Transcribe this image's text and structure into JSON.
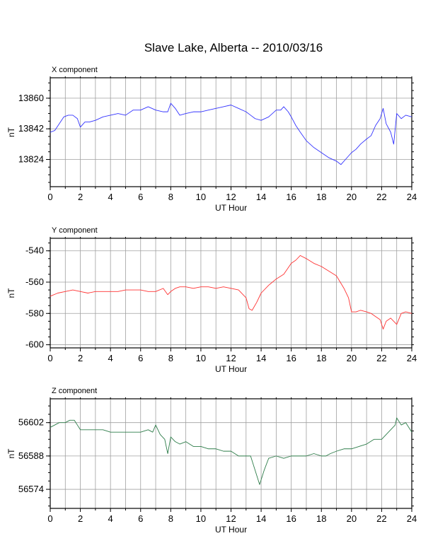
{
  "title": "Slave Lake, Alberta -- 2010/03/16",
  "chart_data": [
    {
      "type": "line",
      "title": "X component",
      "xlabel": "UT Hour",
      "ylabel": "nT",
      "xlim": [
        0,
        24
      ],
      "ylim": [
        13808,
        13872
      ],
      "x_ticks": [
        0,
        2,
        4,
        6,
        8,
        10,
        12,
        14,
        16,
        18,
        20,
        22,
        24
      ],
      "y_ticks": [
        13824,
        13842,
        13860
      ],
      "grid": true,
      "color": "#3333ff",
      "series": [
        {
          "x": [
            0,
            0.3,
            0.6,
            0.9,
            1.2,
            1.5,
            1.8,
            2.0,
            2.3,
            2.6,
            3.0,
            3.5,
            4.0,
            4.5,
            5.0,
            5.5,
            6.0,
            6.5,
            7.0,
            7.5,
            7.8,
            8.0,
            8.3,
            8.6,
            9.0,
            9.5,
            10.0,
            10.5,
            11.0,
            11.5,
            12.0,
            12.5,
            13.0,
            13.3,
            13.6,
            14.0,
            14.5,
            15.0,
            15.3,
            15.5,
            15.8,
            16.0,
            16.3,
            16.6,
            17.0,
            17.5,
            18.0,
            18.5,
            19.0,
            19.3,
            19.6,
            20.0,
            20.3,
            20.6,
            21.0,
            21.3,
            21.6,
            21.9,
            22.1,
            22.3,
            22.6,
            22.8,
            23.0,
            23.3,
            23.6,
            24.0
          ],
          "y": [
            13840,
            13841,
            13845,
            13849,
            13850,
            13850,
            13848,
            13843,
            13846,
            13846,
            13847,
            13849,
            13850,
            13851,
            13850,
            13853,
            13853,
            13855,
            13853,
            13852,
            13852,
            13857,
            13854,
            13850,
            13851,
            13852,
            13852,
            13853,
            13854,
            13855,
            13856,
            13854,
            13852,
            13850,
            13848,
            13847,
            13849,
            13853,
            13853,
            13855,
            13852,
            13849,
            13844,
            13840,
            13835,
            13831,
            13828,
            13825,
            13823,
            13821,
            13824,
            13828,
            13830,
            13833,
            13836,
            13838,
            13844,
            13848,
            13854,
            13845,
            13840,
            13833,
            13851,
            13848,
            13850,
            13849
          ]
        }
      ]
    },
    {
      "type": "line",
      "title": "Y component",
      "xlabel": "UT Hour",
      "ylabel": "nT",
      "xlim": [
        0,
        24
      ],
      "ylim": [
        -602,
        -532
      ],
      "x_ticks": [
        0,
        2,
        4,
        6,
        8,
        10,
        12,
        14,
        16,
        18,
        20,
        22,
        24
      ],
      "y_ticks": [
        -600,
        -580,
        -560,
        -540
      ],
      "grid": true,
      "color": "#ff3333",
      "series": [
        {
          "x": [
            0,
            0.5,
            1.0,
            1.5,
            2.0,
            2.5,
            3.0,
            3.5,
            4.0,
            4.5,
            5.0,
            5.5,
            6.0,
            6.5,
            7.0,
            7.5,
            7.8,
            8.0,
            8.3,
            8.6,
            9.0,
            9.5,
            10.0,
            10.5,
            11.0,
            11.5,
            12.0,
            12.5,
            13.0,
            13.2,
            13.4,
            13.7,
            14.0,
            14.5,
            15.0,
            15.5,
            16.0,
            16.3,
            16.6,
            17.0,
            17.5,
            18.0,
            18.5,
            19.0,
            19.5,
            19.8,
            20.0,
            20.3,
            20.6,
            21.0,
            21.3,
            21.6,
            21.9,
            22.1,
            22.3,
            22.6,
            22.9,
            23.0,
            23.3,
            23.6,
            24.0
          ],
          "y": [
            -569,
            -567,
            -566,
            -565,
            -566,
            -567,
            -566,
            -566,
            -566,
            -566,
            -565,
            -565,
            -565,
            -566,
            -566,
            -564,
            -568,
            -566,
            -564,
            -563,
            -563,
            -564,
            -563,
            -563,
            -564,
            -563,
            -564,
            -565,
            -570,
            -577,
            -578,
            -573,
            -567,
            -562,
            -558,
            -555,
            -548,
            -546,
            -543,
            -545,
            -548,
            -550,
            -553,
            -556,
            -564,
            -570,
            -579,
            -579,
            -578,
            -579,
            -580,
            -582,
            -584,
            -590,
            -585,
            -583,
            -586,
            -587,
            -580,
            -579,
            -580
          ]
        }
      ]
    },
    {
      "type": "line",
      "title": "Z component",
      "xlabel": "UT Hour",
      "ylabel": "nT",
      "xlim": [
        0,
        24
      ],
      "ylim": [
        56566,
        56612
      ],
      "x_ticks": [
        0,
        2,
        4,
        6,
        8,
        10,
        12,
        14,
        16,
        18,
        20,
        22,
        24
      ],
      "y_ticks": [
        56574,
        56588,
        56602
      ],
      "grid": true,
      "color": "#2e7d4a",
      "series": [
        {
          "x": [
            0,
            0.3,
            0.6,
            1.0,
            1.3,
            1.6,
            1.8,
            2.0,
            2.3,
            2.6,
            3.0,
            3.5,
            4.0,
            4.5,
            5.0,
            5.5,
            6.0,
            6.5,
            6.8,
            7.0,
            7.3,
            7.6,
            7.8,
            8.0,
            8.3,
            8.6,
            9.0,
            9.5,
            10.0,
            10.5,
            11.0,
            11.5,
            12.0,
            12.5,
            13.0,
            13.3,
            13.6,
            13.9,
            14.2,
            14.5,
            15.0,
            15.5,
            16.0,
            16.5,
            17.0,
            17.5,
            18.0,
            18.3,
            18.6,
            19.0,
            19.5,
            20.0,
            20.5,
            21.0,
            21.5,
            22.0,
            22.3,
            22.6,
            22.9,
            23.0,
            23.3,
            23.6,
            24.0
          ],
          "y": [
            56600,
            56601,
            56602,
            56602,
            56603,
            56603,
            56601,
            56599,
            56599,
            56599,
            56599,
            56599,
            56598,
            56598,
            56598,
            56598,
            56598,
            56599,
            56598,
            56601,
            56597,
            56595,
            56589,
            56596,
            56594,
            56593,
            56594,
            56592,
            56592,
            56591,
            56591,
            56590,
            56590,
            56588,
            56588,
            56588,
            56582,
            56576,
            56582,
            56587,
            56588,
            56587,
            56588,
            56588,
            56588,
            56589,
            56588,
            56588,
            56589,
            56590,
            56591,
            56591,
            56592,
            56593,
            56595,
            56595,
            56597,
            56599,
            56601,
            56604,
            56601,
            56602,
            56598
          ]
        }
      ]
    }
  ]
}
